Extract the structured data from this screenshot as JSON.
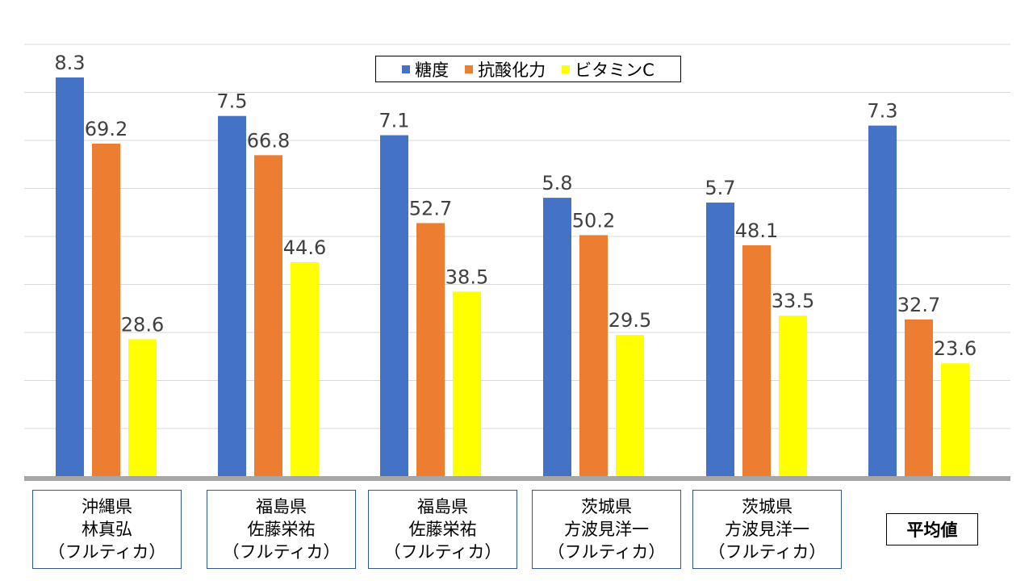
{
  "chart_data": {
    "type": "bar",
    "categories": [
      [
        "沖縄県",
        "林真弘",
        "（フルティカ）"
      ],
      [
        "福島県",
        "佐藤栄祐",
        "（フルティカ）"
      ],
      [
        "福島県",
        "佐藤栄祐",
        "（フルティカ）"
      ],
      [
        "茨城県",
        "方波見洋一",
        "（フルティカ）"
      ],
      [
        "茨城県",
        "方波見洋一",
        "（フルティカ）"
      ],
      [
        "平均値"
      ]
    ],
    "series": [
      {
        "name": "糖度",
        "color": "#4472c4",
        "values": [
          8.3,
          7.5,
          7.1,
          5.8,
          5.7,
          7.3
        ],
        "labels": [
          "8.3",
          "7.5",
          "7.1",
          "5.8",
          "5.7",
          "7.3"
        ]
      },
      {
        "name": "抗酸化力",
        "color": "#ed7d31",
        "values": [
          69.2,
          66.8,
          52.7,
          50.2,
          48.1,
          32.7
        ],
        "labels": [
          "69.2",
          "66.8",
          "52.7",
          "50.2",
          "48.1",
          "32.7"
        ]
      },
      {
        "name": "ビタミンC",
        "color": "#ffff00",
        "values": [
          28.6,
          44.6,
          38.5,
          29.5,
          33.5,
          23.6
        ],
        "labels": [
          "28.6",
          "44.6",
          "38.5",
          "29.5",
          "33.5",
          "23.6"
        ]
      }
    ],
    "legend": {
      "position": "top-center"
    },
    "grid": true
  }
}
